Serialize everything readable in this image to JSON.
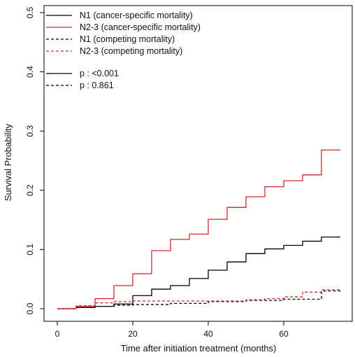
{
  "chart_data": {
    "type": "line",
    "step": true,
    "xlabel": "Time after initiation treatment (months)",
    "ylabel": "Survival Probability",
    "xlim": [
      0,
      75
    ],
    "ylim": [
      0,
      0.5
    ],
    "xticks": [
      0,
      20,
      40,
      60
    ],
    "yticks": [
      0.0,
      0.1,
      0.2,
      0.3,
      0.4,
      0.5
    ],
    "xtick_labels": [
      "0",
      "20",
      "40",
      "60"
    ],
    "ytick_labels": [
      "0.0",
      "0.1",
      "0.2",
      "0.3",
      "0.4",
      "0.5"
    ],
    "grid": false,
    "legend_position": "top-left",
    "series": [
      {
        "name": "N1 (cancer-specific mortality)",
        "color": "#000000",
        "dash": "solid",
        "x": [
          0,
          5,
          10,
          15,
          20,
          25,
          30,
          35,
          40,
          45,
          50,
          55,
          60,
          65,
          70,
          75
        ],
        "y": [
          0,
          0.002,
          0.004,
          0.008,
          0.022,
          0.033,
          0.039,
          0.051,
          0.065,
          0.079,
          0.093,
          0.101,
          0.107,
          0.114,
          0.121,
          0.121
        ]
      },
      {
        "name": "N2-3 (cancer-specific mortality)",
        "color": "#d62728",
        "dash": "solid",
        "x": [
          0,
          5,
          10,
          15,
          20,
          25,
          30,
          35,
          40,
          45,
          50,
          55,
          60,
          65,
          70,
          75
        ],
        "y": [
          0,
          0.004,
          0.017,
          0.039,
          0.059,
          0.098,
          0.117,
          0.126,
          0.151,
          0.171,
          0.189,
          0.206,
          0.216,
          0.226,
          0.268,
          0.268
        ]
      },
      {
        "name": "N1 (competing mortality)",
        "color": "#000000",
        "dash": "dashed",
        "x": [
          0,
          5,
          10,
          15,
          20,
          30,
          40,
          50,
          60,
          70,
          75
        ],
        "y": [
          0,
          0.002,
          0.004,
          0.006,
          0.007,
          0.009,
          0.012,
          0.014,
          0.016,
          0.03,
          0.031
        ]
      },
      {
        "name": "N2-3 (competing mortality)",
        "color": "#d62728",
        "dash": "dashed",
        "x": [
          0,
          5,
          10,
          15,
          20,
          30,
          40,
          50,
          55,
          60,
          65,
          70,
          75
        ],
        "y": [
          0,
          0.005,
          0.01,
          0.012,
          0.013,
          0.013,
          0.013,
          0.015,
          0.017,
          0.02,
          0.028,
          0.032,
          0.033
        ]
      }
    ],
    "pvalues": [
      {
        "label": "p : <0.001",
        "dash": "solid",
        "color": "#000000"
      },
      {
        "label": "p : 0.861",
        "dash": "dashed",
        "color": "#000000"
      }
    ]
  }
}
